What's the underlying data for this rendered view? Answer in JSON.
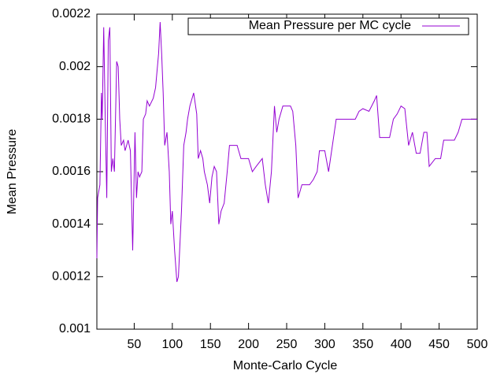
{
  "chart_data": {
    "type": "line",
    "xlabel": "Monte-Carlo Cycle",
    "ylabel": "Mean Pressure",
    "legend": "top-right",
    "x": [
      1,
      2,
      5,
      7,
      8,
      10,
      12,
      14,
      16,
      18,
      20,
      22,
      24,
      27,
      29,
      31,
      33,
      36,
      38,
      42,
      45,
      48,
      51,
      53,
      55,
      57,
      60,
      62,
      65,
      67,
      70,
      75,
      78,
      82,
      84,
      86,
      88,
      90,
      93,
      96,
      98,
      100,
      103,
      106,
      108,
      112,
      115,
      118,
      120,
      123,
      128,
      132,
      134,
      137,
      140,
      142,
      146,
      149,
      152,
      155,
      158,
      161,
      164,
      168,
      172,
      175,
      185,
      190,
      200,
      205,
      210,
      218,
      222,
      226,
      230,
      234,
      237,
      240,
      245,
      255,
      258,
      262,
      265,
      270,
      280,
      285,
      290,
      293,
      300,
      305,
      310,
      315,
      340,
      345,
      350,
      358,
      365,
      368,
      372,
      385,
      390,
      395,
      400,
      405,
      410,
      415,
      420,
      425,
      430,
      434,
      437,
      445,
      452,
      456,
      465,
      470,
      475,
      480,
      500
    ],
    "series": [
      {
        "name": "Mean Pressure per MC cycle",
        "color": "#9400d3",
        "values": [
          0.00127,
          0.0015,
          0.00155,
          0.0019,
          0.0018,
          0.00215,
          0.0018,
          0.0015,
          0.0021,
          0.00215,
          0.0016,
          0.00165,
          0.0016,
          0.00202,
          0.002,
          0.0018,
          0.0017,
          0.00172,
          0.00168,
          0.00172,
          0.00168,
          0.0013,
          0.00175,
          0.0015,
          0.0016,
          0.00158,
          0.0016,
          0.0018,
          0.00182,
          0.00187,
          0.00185,
          0.00188,
          0.00192,
          0.00205,
          0.00217,
          0.00205,
          0.0019,
          0.0017,
          0.00175,
          0.0016,
          0.0014,
          0.00145,
          0.0013,
          0.00118,
          0.0012,
          0.00145,
          0.0017,
          0.00175,
          0.0018,
          0.00185,
          0.0019,
          0.00182,
          0.00165,
          0.00168,
          0.00165,
          0.0016,
          0.00155,
          0.00148,
          0.00158,
          0.00162,
          0.0016,
          0.0014,
          0.00145,
          0.00148,
          0.0016,
          0.0017,
          0.0017,
          0.00165,
          0.00165,
          0.0016,
          0.00162,
          0.00165,
          0.00155,
          0.00148,
          0.0016,
          0.00185,
          0.00175,
          0.0018,
          0.00185,
          0.00185,
          0.00183,
          0.0017,
          0.0015,
          0.00155,
          0.00155,
          0.00157,
          0.0016,
          0.00168,
          0.00168,
          0.0016,
          0.0017,
          0.0018,
          0.0018,
          0.00183,
          0.00184,
          0.00183,
          0.00187,
          0.00189,
          0.00173,
          0.00173,
          0.0018,
          0.00182,
          0.00185,
          0.00184,
          0.0017,
          0.00175,
          0.00167,
          0.00167,
          0.00175,
          0.00175,
          0.00162,
          0.00165,
          0.00165,
          0.00172,
          0.00172,
          0.00172,
          0.00175,
          0.0018,
          0.0018
        ]
      }
    ],
    "xlim": [
      1,
      500
    ],
    "xticks": [
      50,
      100,
      150,
      200,
      250,
      300,
      350,
      400,
      450,
      500
    ],
    "ylim": [
      0.001,
      0.0022
    ],
    "yticks": [
      0.001,
      0.0012,
      0.0014,
      0.0016,
      0.0018,
      0.002,
      0.0022
    ]
  }
}
